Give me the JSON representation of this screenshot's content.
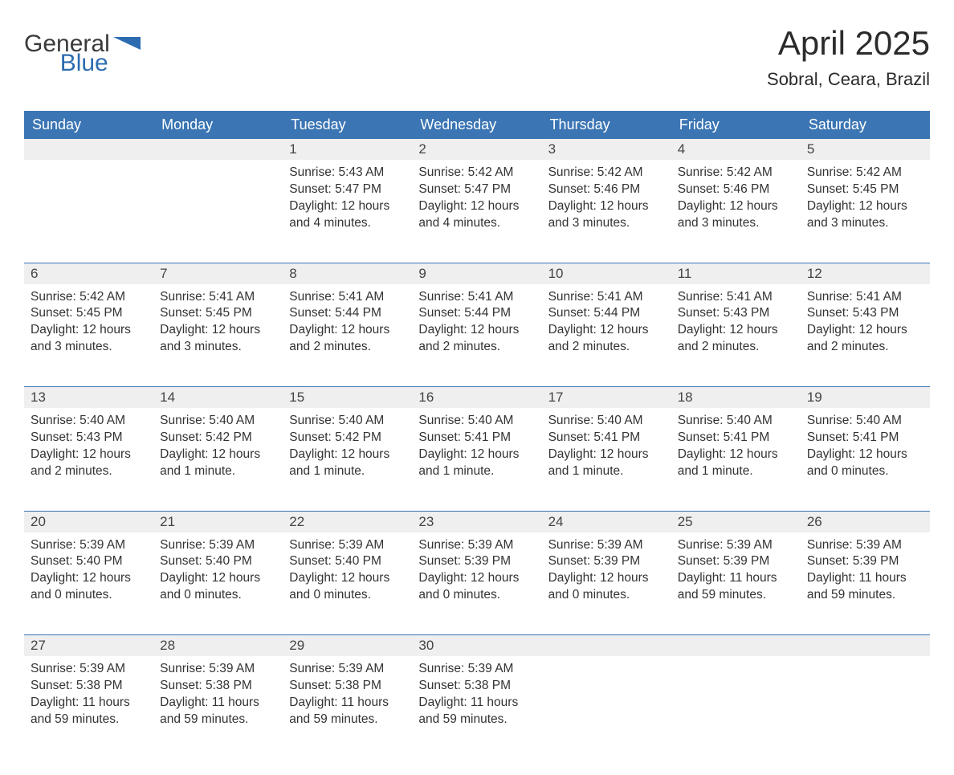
{
  "logo": {
    "general": "General",
    "blue": "Blue",
    "flag_color": "#2d6cb0"
  },
  "title": "April 2025",
  "location": "Sobral, Ceara, Brazil",
  "colors": {
    "header_bg": "#3b75b4",
    "header_text": "#ffffff",
    "daynum_bg": "#efefef",
    "week_border": "#3b75b4",
    "body_text": "#333333",
    "page_bg": "#ffffff"
  },
  "fonts": {
    "title_size_pt": 42,
    "location_size_pt": 22,
    "header_size_pt": 18,
    "daynum_size_pt": 17,
    "body_size_pt": 15.5
  },
  "day_headers": [
    "Sunday",
    "Monday",
    "Tuesday",
    "Wednesday",
    "Thursday",
    "Friday",
    "Saturday"
  ],
  "weeks": [
    [
      null,
      null,
      {
        "n": "1",
        "sr": "5:43 AM",
        "ss": "5:47 PM",
        "dl": "12 hours and 4 minutes."
      },
      {
        "n": "2",
        "sr": "5:42 AM",
        "ss": "5:47 PM",
        "dl": "12 hours and 4 minutes."
      },
      {
        "n": "3",
        "sr": "5:42 AM",
        "ss": "5:46 PM",
        "dl": "12 hours and 3 minutes."
      },
      {
        "n": "4",
        "sr": "5:42 AM",
        "ss": "5:46 PM",
        "dl": "12 hours and 3 minutes."
      },
      {
        "n": "5",
        "sr": "5:42 AM",
        "ss": "5:45 PM",
        "dl": "12 hours and 3 minutes."
      }
    ],
    [
      {
        "n": "6",
        "sr": "5:42 AM",
        "ss": "5:45 PM",
        "dl": "12 hours and 3 minutes."
      },
      {
        "n": "7",
        "sr": "5:41 AM",
        "ss": "5:45 PM",
        "dl": "12 hours and 3 minutes."
      },
      {
        "n": "8",
        "sr": "5:41 AM",
        "ss": "5:44 PM",
        "dl": "12 hours and 2 minutes."
      },
      {
        "n": "9",
        "sr": "5:41 AM",
        "ss": "5:44 PM",
        "dl": "12 hours and 2 minutes."
      },
      {
        "n": "10",
        "sr": "5:41 AM",
        "ss": "5:44 PM",
        "dl": "12 hours and 2 minutes."
      },
      {
        "n": "11",
        "sr": "5:41 AM",
        "ss": "5:43 PM",
        "dl": "12 hours and 2 minutes."
      },
      {
        "n": "12",
        "sr": "5:41 AM",
        "ss": "5:43 PM",
        "dl": "12 hours and 2 minutes."
      }
    ],
    [
      {
        "n": "13",
        "sr": "5:40 AM",
        "ss": "5:43 PM",
        "dl": "12 hours and 2 minutes."
      },
      {
        "n": "14",
        "sr": "5:40 AM",
        "ss": "5:42 PM",
        "dl": "12 hours and 1 minute."
      },
      {
        "n": "15",
        "sr": "5:40 AM",
        "ss": "5:42 PM",
        "dl": "12 hours and 1 minute."
      },
      {
        "n": "16",
        "sr": "5:40 AM",
        "ss": "5:41 PM",
        "dl": "12 hours and 1 minute."
      },
      {
        "n": "17",
        "sr": "5:40 AM",
        "ss": "5:41 PM",
        "dl": "12 hours and 1 minute."
      },
      {
        "n": "18",
        "sr": "5:40 AM",
        "ss": "5:41 PM",
        "dl": "12 hours and 1 minute."
      },
      {
        "n": "19",
        "sr": "5:40 AM",
        "ss": "5:41 PM",
        "dl": "12 hours and 0 minutes."
      }
    ],
    [
      {
        "n": "20",
        "sr": "5:39 AM",
        "ss": "5:40 PM",
        "dl": "12 hours and 0 minutes."
      },
      {
        "n": "21",
        "sr": "5:39 AM",
        "ss": "5:40 PM",
        "dl": "12 hours and 0 minutes."
      },
      {
        "n": "22",
        "sr": "5:39 AM",
        "ss": "5:40 PM",
        "dl": "12 hours and 0 minutes."
      },
      {
        "n": "23",
        "sr": "5:39 AM",
        "ss": "5:39 PM",
        "dl": "12 hours and 0 minutes."
      },
      {
        "n": "24",
        "sr": "5:39 AM",
        "ss": "5:39 PM",
        "dl": "12 hours and 0 minutes."
      },
      {
        "n": "25",
        "sr": "5:39 AM",
        "ss": "5:39 PM",
        "dl": "11 hours and 59 minutes."
      },
      {
        "n": "26",
        "sr": "5:39 AM",
        "ss": "5:39 PM",
        "dl": "11 hours and 59 minutes."
      }
    ],
    [
      {
        "n": "27",
        "sr": "5:39 AM",
        "ss": "5:38 PM",
        "dl": "11 hours and 59 minutes."
      },
      {
        "n": "28",
        "sr": "5:39 AM",
        "ss": "5:38 PM",
        "dl": "11 hours and 59 minutes."
      },
      {
        "n": "29",
        "sr": "5:39 AM",
        "ss": "5:38 PM",
        "dl": "11 hours and 59 minutes."
      },
      {
        "n": "30",
        "sr": "5:39 AM",
        "ss": "5:38 PM",
        "dl": "11 hours and 59 minutes."
      },
      null,
      null,
      null
    ]
  ],
  "labels": {
    "sunrise": "Sunrise:",
    "sunset": "Sunset:",
    "daylight": "Daylight:"
  }
}
